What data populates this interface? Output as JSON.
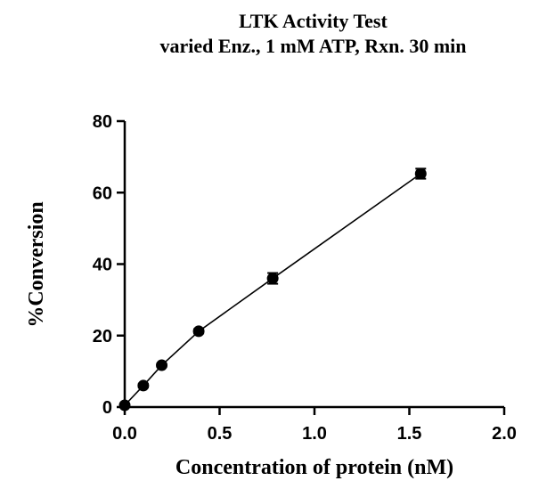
{
  "chart_data": {
    "type": "scatter",
    "title": "LTK Activity Test",
    "subtitle": "varied Enz., 1 mM ATP, Rxn. 30 min",
    "xlabel": "Concentration of protein (nM)",
    "ylabel": "%Conversion",
    "xlim": [
      0,
      2.0
    ],
    "ylim": [
      0,
      80
    ],
    "x_ticks": [
      "0.0",
      "0.5",
      "1.0",
      "1.5",
      "2.0"
    ],
    "y_ticks": [
      "0",
      "20",
      "40",
      "60",
      "80"
    ],
    "grid": false,
    "series": [
      {
        "x": [
          0,
          0.098,
          0.195,
          0.39,
          0.78,
          1.56
        ],
        "y": [
          0.5,
          6.0,
          11.7,
          21.2,
          36.0,
          65.3
        ],
        "error": [
          0.3,
          0.5,
          0.5,
          0.6,
          1.5,
          1.4
        ],
        "color": "#000000",
        "line": true
      }
    ]
  }
}
